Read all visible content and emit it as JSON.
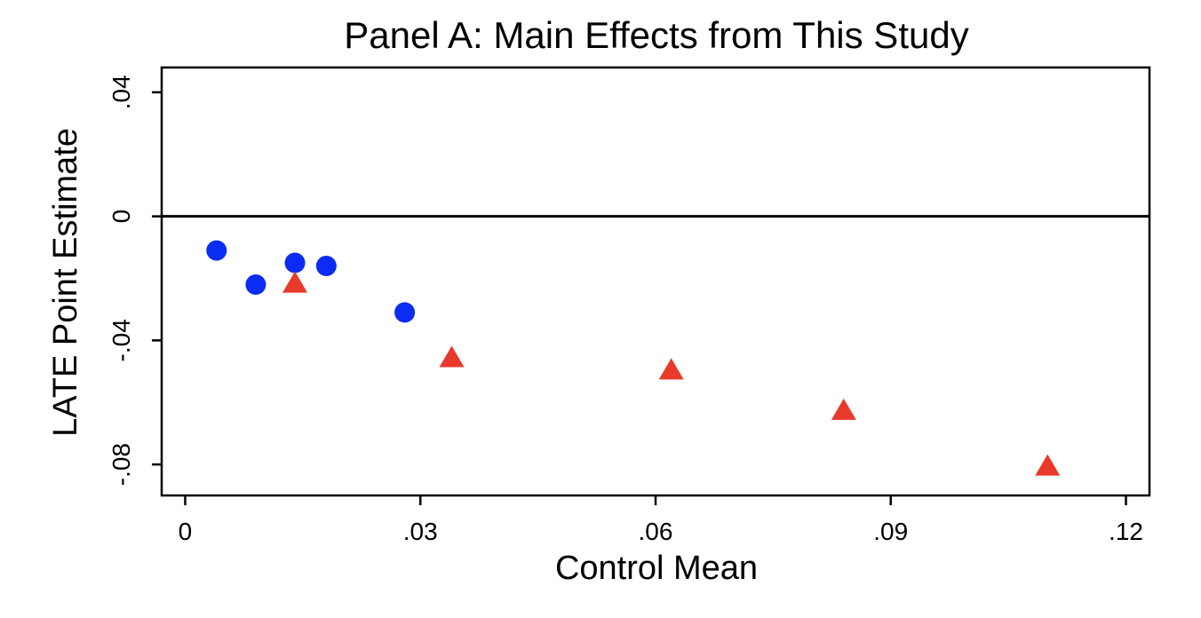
{
  "chart_data": {
    "type": "scatter",
    "title": "Panel A: Main Effects from This Study",
    "xlabel": "Control Mean",
    "ylabel": "LATE Point Estimate",
    "xlim": [
      -0.003,
      0.123
    ],
    "ylim": [
      -0.09,
      0.048
    ],
    "x_ticks": [
      0,
      0.03,
      0.06,
      0.09,
      0.12
    ],
    "x_tick_labels": [
      "0",
      ".03",
      ".06",
      ".09",
      ".12"
    ],
    "y_ticks": [
      0.04,
      0,
      -0.04,
      -0.08
    ],
    "y_tick_labels": [
      ".04",
      "0",
      "-.04",
      "-.08"
    ],
    "reference_line_y": 0,
    "grid": false,
    "series": [
      {
        "marker": "circle",
        "color": "#0b2cf2",
        "points": [
          {
            "x": 0.004,
            "y": -0.011
          },
          {
            "x": 0.009,
            "y": -0.022
          },
          {
            "x": 0.014,
            "y": -0.015
          },
          {
            "x": 0.018,
            "y": -0.016
          },
          {
            "x": 0.028,
            "y": -0.031
          }
        ]
      },
      {
        "marker": "triangle",
        "color": "#e8392a",
        "points": [
          {
            "x": 0.014,
            "y": -0.022
          },
          {
            "x": 0.034,
            "y": -0.046
          },
          {
            "x": 0.062,
            "y": -0.05
          },
          {
            "x": 0.084,
            "y": -0.063
          },
          {
            "x": 0.11,
            "y": -0.081
          }
        ]
      }
    ]
  }
}
